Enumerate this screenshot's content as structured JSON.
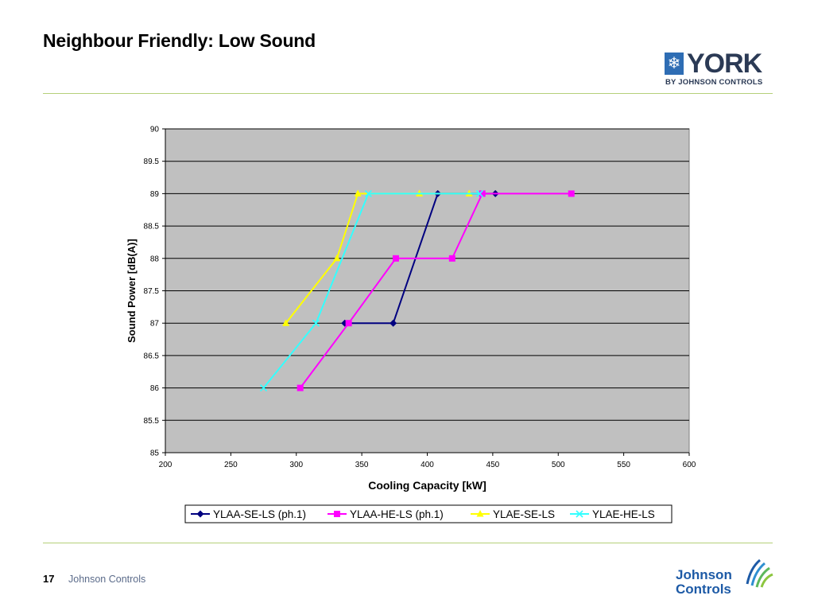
{
  "slide": {
    "title": "Neighbour Friendly: Low Sound",
    "page_number": "17",
    "footer_company": "Johnson Controls"
  },
  "logos": {
    "york_word": "YORK",
    "york_by": "BY JOHNSON CONTROLS",
    "jc_line1": "Johnson",
    "jc_line2": "Controls"
  },
  "colors": {
    "plot_bg": "#c0c0c0",
    "accent_rule": "#b5cf79",
    "york_blue": "#2b3a55",
    "jc_blue": "#1d5aa6"
  },
  "chart_data": {
    "type": "line",
    "title": "",
    "xlabel": "Cooling Capacity [kW]",
    "ylabel": "Sound Power [dB(A)]",
    "xlim": [
      200,
      600
    ],
    "ylim": [
      85,
      90
    ],
    "xticks": [
      "200",
      "250",
      "300",
      "350",
      "400",
      "450",
      "500",
      "550",
      "600"
    ],
    "yticks": [
      "85",
      "85.5",
      "86",
      "86.5",
      "87",
      "87.5",
      "88",
      "88.5",
      "89",
      "89.5",
      "90"
    ],
    "xtick_values": [
      200,
      250,
      300,
      350,
      400,
      450,
      500,
      550,
      600
    ],
    "ytick_values": [
      85,
      85.5,
      86,
      86.5,
      87,
      87.5,
      88,
      88.5,
      89,
      89.5,
      90
    ],
    "grid": "horizontal",
    "legend_position": "bottom",
    "series": [
      {
        "name": "YLAA-SE-LS (ph.1)",
        "color": "#000080",
        "marker": "diamond",
        "points": [
          [
            337,
            87
          ],
          [
            374,
            87
          ],
          [
            408,
            89
          ],
          [
            452,
            89
          ]
        ]
      },
      {
        "name": "YLAA-HE-LS (ph.1)",
        "color": "#ff00ff",
        "marker": "square",
        "points": [
          [
            303,
            86
          ],
          [
            340,
            87
          ],
          [
            376,
            88
          ],
          [
            419,
            88
          ],
          [
            442,
            89
          ],
          [
            510,
            89
          ]
        ]
      },
      {
        "name": "YLAE-SE-LS",
        "color": "#ffff00",
        "marker": "triangle",
        "points": [
          [
            292,
            87
          ],
          [
            331,
            88
          ],
          [
            347,
            89
          ],
          [
            394,
            89
          ],
          [
            432,
            89
          ]
        ]
      },
      {
        "name": "YLAE-HE-LS",
        "color": "#33ffff",
        "marker": "star",
        "points": [
          [
            275,
            86
          ],
          [
            315,
            87
          ],
          [
            355,
            89
          ],
          [
            440,
            89
          ]
        ]
      }
    ]
  }
}
